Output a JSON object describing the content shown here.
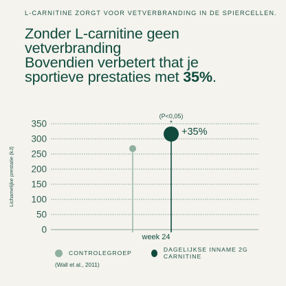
{
  "eyebrow": "L-CARNITINE ZORGT VOOR VETVERBRANDING IN DE SPIERCELLEN.",
  "headline": {
    "line1": "Zonder L-carnitine geen vetverbranding",
    "line2": "Bovendien verbetert that je",
    "line3_prefix": "sportieve prestaties met ",
    "line3_highlight": "35%",
    "line3_suffix": "."
  },
  "chart_data": {
    "type": "scatter",
    "categories": [
      "week 24"
    ],
    "series": [
      {
        "name": "CONTROLEGROEP",
        "values": [
          268
        ],
        "color": "#8fb09e"
      },
      {
        "name": "DAGELIJKSE INNAME 2G CARNITINE",
        "values": [
          316
        ],
        "color": "#0f4a3c"
      }
    ],
    "ylabel": "Lichamelijke prestatie (kJ)",
    "ylim": [
      0,
      350
    ],
    "yticks": [
      0,
      50,
      100,
      150,
      200,
      250,
      300,
      350
    ],
    "grid": true,
    "annotations": {
      "significance": "(P<0,05)",
      "star": "*",
      "increase": "+35%"
    },
    "legend_position": "bottom"
  },
  "source": "(Wall et al., 2011)"
}
